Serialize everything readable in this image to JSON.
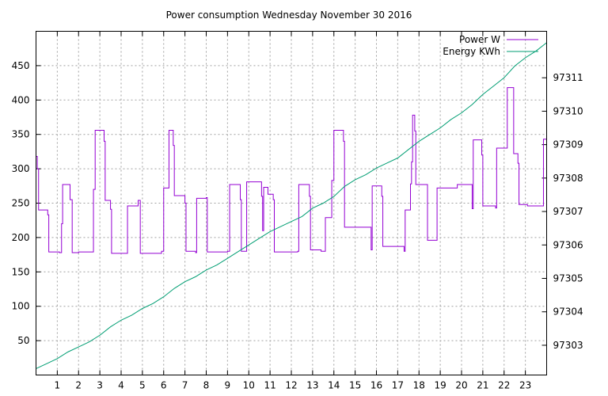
{
  "chart_data": {
    "type": "line",
    "title": "Power consumption Wednesday November 30 2016",
    "xlim": [
      0,
      24
    ],
    "ylim": [
      0,
      500
    ],
    "y2lim": [
      97302.11,
      97312.39
    ],
    "x_ticks": [
      1,
      2,
      3,
      4,
      5,
      6,
      7,
      8,
      9,
      10,
      11,
      12,
      13,
      14,
      15,
      16,
      17,
      18,
      19,
      20,
      21,
      22,
      23
    ],
    "y_ticks": [
      50,
      100,
      150,
      200,
      250,
      300,
      350,
      400,
      450
    ],
    "y2_ticks": [
      97303,
      97304,
      97305,
      97306,
      97307,
      97308,
      97309,
      97310,
      97311
    ],
    "grid": true,
    "legend_position": "top-right",
    "series": [
      {
        "name": "Power W",
        "axis": "y",
        "color": "#9400d3",
        "points": [
          [
            0.0,
            318
          ],
          [
            0.06,
            318
          ],
          [
            0.06,
            300
          ],
          [
            0.12,
            300
          ],
          [
            0.12,
            240
          ],
          [
            0.55,
            240
          ],
          [
            0.55,
            233
          ],
          [
            0.6,
            233
          ],
          [
            0.6,
            179
          ],
          [
            1.1,
            179
          ],
          [
            1.1,
            178
          ],
          [
            1.2,
            178
          ],
          [
            1.2,
            220
          ],
          [
            1.25,
            220
          ],
          [
            1.25,
            277
          ],
          [
            1.6,
            277
          ],
          [
            1.6,
            255
          ],
          [
            1.7,
            255
          ],
          [
            1.7,
            178
          ],
          [
            2.0,
            178
          ],
          [
            2.0,
            179
          ],
          [
            2.7,
            179
          ],
          [
            2.7,
            270
          ],
          [
            2.78,
            270
          ],
          [
            2.78,
            356
          ],
          [
            3.2,
            356
          ],
          [
            3.2,
            340
          ],
          [
            3.25,
            340
          ],
          [
            3.25,
            254
          ],
          [
            3.5,
            254
          ],
          [
            3.5,
            241
          ],
          [
            3.55,
            241
          ],
          [
            3.55,
            177
          ],
          [
            4.3,
            177
          ],
          [
            4.3,
            246
          ],
          [
            4.8,
            246
          ],
          [
            4.8,
            254
          ],
          [
            4.9,
            254
          ],
          [
            4.9,
            177
          ],
          [
            5.9,
            177
          ],
          [
            5.9,
            180
          ],
          [
            6.0,
            180
          ],
          [
            6.0,
            272
          ],
          [
            6.25,
            272
          ],
          [
            6.25,
            356
          ],
          [
            6.45,
            356
          ],
          [
            6.45,
            334
          ],
          [
            6.5,
            334
          ],
          [
            6.5,
            261
          ],
          [
            7.0,
            261
          ],
          [
            7.0,
            250
          ],
          [
            7.05,
            250
          ],
          [
            7.05,
            180
          ],
          [
            7.5,
            180
          ],
          [
            7.5,
            178
          ],
          [
            7.55,
            178
          ],
          [
            7.55,
            257
          ],
          [
            8.0,
            257
          ],
          [
            8.0,
            258
          ],
          [
            8.05,
            258
          ],
          [
            8.05,
            179
          ],
          [
            9.0,
            179
          ],
          [
            9.0,
            180
          ],
          [
            9.1,
            180
          ],
          [
            9.1,
            277
          ],
          [
            9.6,
            277
          ],
          [
            9.6,
            255
          ],
          [
            9.65,
            255
          ],
          [
            9.65,
            180
          ],
          [
            9.9,
            180
          ],
          [
            9.9,
            281
          ],
          [
            10.6,
            281
          ],
          [
            10.6,
            260
          ],
          [
            10.65,
            260
          ],
          [
            10.65,
            210
          ],
          [
            10.7,
            210
          ],
          [
            10.7,
            273
          ],
          [
            10.9,
            273
          ],
          [
            10.9,
            263
          ],
          [
            11.15,
            263
          ],
          [
            11.15,
            255
          ],
          [
            11.2,
            255
          ],
          [
            11.2,
            179
          ],
          [
            12.3,
            179
          ],
          [
            12.3,
            180
          ],
          [
            12.35,
            180
          ],
          [
            12.35,
            277
          ],
          [
            12.85,
            277
          ],
          [
            12.85,
            260
          ],
          [
            12.9,
            260
          ],
          [
            12.9,
            182
          ],
          [
            13.4,
            182
          ],
          [
            13.4,
            180
          ],
          [
            13.6,
            180
          ],
          [
            13.6,
            229
          ],
          [
            13.9,
            229
          ],
          [
            13.9,
            283
          ],
          [
            14.0,
            283
          ],
          [
            14.0,
            356
          ],
          [
            14.45,
            356
          ],
          [
            14.45,
            340
          ],
          [
            14.5,
            340
          ],
          [
            14.5,
            215
          ],
          [
            15.75,
            215
          ],
          [
            15.75,
            182
          ],
          [
            15.8,
            182
          ],
          [
            15.8,
            275
          ],
          [
            16.25,
            275
          ],
          [
            16.25,
            260
          ],
          [
            16.3,
            260
          ],
          [
            16.3,
            187
          ],
          [
            17.3,
            187
          ],
          [
            17.3,
            180
          ],
          [
            17.35,
            180
          ],
          [
            17.35,
            240
          ],
          [
            17.6,
            240
          ],
          [
            17.6,
            278
          ],
          [
            17.65,
            278
          ],
          [
            17.65,
            310
          ],
          [
            17.7,
            310
          ],
          [
            17.7,
            378
          ],
          [
            17.8,
            378
          ],
          [
            17.8,
            355
          ],
          [
            17.85,
            355
          ],
          [
            17.85,
            277
          ],
          [
            18.4,
            277
          ],
          [
            18.4,
            196
          ],
          [
            18.85,
            196
          ],
          [
            18.85,
            272
          ],
          [
            19.8,
            272
          ],
          [
            19.8,
            277
          ],
          [
            20.5,
            277
          ],
          [
            20.5,
            242
          ],
          [
            20.55,
            242
          ],
          [
            20.55,
            342
          ],
          [
            20.95,
            342
          ],
          [
            20.95,
            320
          ],
          [
            21.0,
            320
          ],
          [
            21.0,
            246
          ],
          [
            21.6,
            246
          ],
          [
            21.6,
            243
          ],
          [
            21.65,
            243
          ],
          [
            21.65,
            330
          ],
          [
            22.15,
            330
          ],
          [
            22.15,
            418
          ],
          [
            22.45,
            418
          ],
          [
            22.45,
            322
          ],
          [
            22.65,
            322
          ],
          [
            22.65,
            308
          ],
          [
            22.7,
            308
          ],
          [
            22.7,
            248
          ],
          [
            23.1,
            248
          ],
          [
            23.1,
            246
          ],
          [
            23.85,
            246
          ],
          [
            23.85,
            343
          ],
          [
            24.0,
            343
          ]
        ]
      },
      {
        "name": "Energy KWh",
        "axis": "y2",
        "color": "#009e73",
        "points": [
          [
            0.0,
            97302.3
          ],
          [
            0.5,
            97302.45
          ],
          [
            1.0,
            97302.6
          ],
          [
            1.5,
            97302.8
          ],
          [
            2.0,
            97302.95
          ],
          [
            2.5,
            97303.1
          ],
          [
            3.0,
            97303.3
          ],
          [
            3.5,
            97303.55
          ],
          [
            4.0,
            97303.75
          ],
          [
            4.5,
            97303.9
          ],
          [
            5.0,
            97304.1
          ],
          [
            5.5,
            97304.25
          ],
          [
            6.0,
            97304.45
          ],
          [
            6.5,
            97304.7
          ],
          [
            7.0,
            97304.9
          ],
          [
            7.5,
            97305.05
          ],
          [
            8.0,
            97305.25
          ],
          [
            8.5,
            97305.4
          ],
          [
            9.0,
            97305.6
          ],
          [
            9.5,
            97305.8
          ],
          [
            10.0,
            97306.0
          ],
          [
            10.5,
            97306.2
          ],
          [
            11.0,
            97306.4
          ],
          [
            11.5,
            97306.55
          ],
          [
            12.0,
            97306.7
          ],
          [
            12.5,
            97306.85
          ],
          [
            13.0,
            97307.1
          ],
          [
            13.5,
            97307.25
          ],
          [
            14.0,
            97307.45
          ],
          [
            14.5,
            97307.75
          ],
          [
            15.0,
            97307.95
          ],
          [
            15.5,
            97308.1
          ],
          [
            16.0,
            97308.3
          ],
          [
            16.5,
            97308.45
          ],
          [
            17.0,
            97308.6
          ],
          [
            17.5,
            97308.85
          ],
          [
            18.0,
            97309.1
          ],
          [
            18.5,
            97309.3
          ],
          [
            19.0,
            97309.5
          ],
          [
            19.5,
            97309.75
          ],
          [
            20.0,
            97309.95
          ],
          [
            20.5,
            97310.2
          ],
          [
            21.0,
            97310.5
          ],
          [
            21.5,
            97310.75
          ],
          [
            22.0,
            97311.0
          ],
          [
            22.5,
            97311.35
          ],
          [
            23.0,
            97311.6
          ],
          [
            23.5,
            97311.8
          ],
          [
            24.0,
            97312.05
          ]
        ]
      }
    ]
  }
}
